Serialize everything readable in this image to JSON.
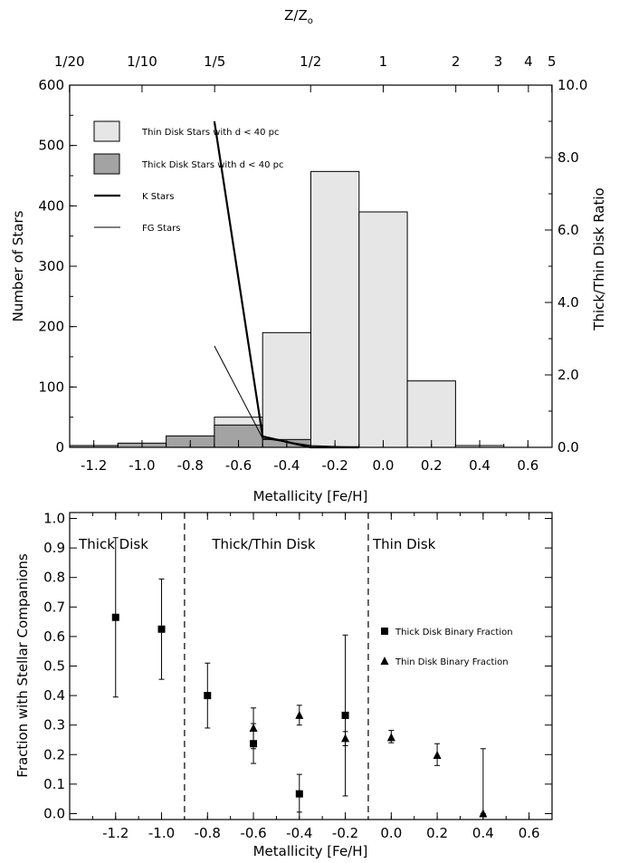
{
  "chart_data": [
    {
      "type": "bar",
      "top_axis": {
        "label_main": "Z/Z",
        "label_sub": "o",
        "ticks": [
          {
            "label": "1/20",
            "feh": -1.301
          },
          {
            "label": "1/10",
            "feh": -1.0
          },
          {
            "label": "1/5",
            "feh": -0.699
          },
          {
            "label": "1/2",
            "feh": -0.301
          },
          {
            "label": "1",
            "feh": 0.0
          },
          {
            "label": "2",
            "feh": 0.301
          },
          {
            "label": "3",
            "feh": 0.477
          },
          {
            "label": "4",
            "feh": 0.602
          },
          {
            "label": "5",
            "feh": 0.699
          }
        ]
      },
      "xlabel": "Metallicity [Fe/H]",
      "ylabel": "Number of Stars",
      "y2label": "Thick/Thin Disk Ratio",
      "xlim": [
        -1.3,
        0.7
      ],
      "ylim": [
        0,
        600
      ],
      "y2lim": [
        0,
        10
      ],
      "xticks": [
        "-1.2",
        "-1.0",
        "-0.8",
        "-0.6",
        "-0.4",
        "-0.2",
        "0.0",
        "0.2",
        "0.4",
        "0.6"
      ],
      "yticks": [
        "0",
        "100",
        "200",
        "300",
        "400",
        "500",
        "600"
      ],
      "y2ticks": [
        "0.0",
        "2.0",
        "4.0",
        "6.0",
        "8.0",
        "10.0"
      ],
      "legend": [
        {
          "label": "Thin Disk Stars with d < 40 pc",
          "kind": "box",
          "color": "#e6e6e6"
        },
        {
          "label": "Thick Disk Stars with d < 40 pc",
          "kind": "box",
          "color": "#a3a3a3"
        },
        {
          "label": "K Stars",
          "kind": "thick-line"
        },
        {
          "label": "FG Stars",
          "kind": "thin-line"
        }
      ],
      "series": [
        {
          "name": "Thin Disk Stars with d < 40 pc",
          "color": "#e6e6e6",
          "bins": [
            {
              "x0": -1.3,
              "x1": -1.1,
              "value": 0
            },
            {
              "x0": -1.1,
              "x1": -0.9,
              "value": 0
            },
            {
              "x0": -0.9,
              "x1": -0.7,
              "value": 0
            },
            {
              "x0": -0.7,
              "x1": -0.5,
              "value": 50
            },
            {
              "x0": -0.5,
              "x1": -0.3,
              "value": 190
            },
            {
              "x0": -0.3,
              "x1": -0.1,
              "value": 457
            },
            {
              "x0": -0.1,
              "x1": 0.1,
              "value": 390
            },
            {
              "x0": 0.1,
              "x1": 0.3,
              "value": 110
            },
            {
              "x0": 0.3,
              "x1": 0.5,
              "value": 3
            }
          ]
        },
        {
          "name": "Thick Disk Stars with d < 40 pc",
          "color": "#a3a3a3",
          "bins": [
            {
              "x0": -1.3,
              "x1": -1.1,
              "value": 3
            },
            {
              "x0": -1.1,
              "x1": -0.9,
              "value": 7
            },
            {
              "x0": -0.9,
              "x1": -0.7,
              "value": 19
            },
            {
              "x0": -0.7,
              "x1": -0.5,
              "value": 37
            },
            {
              "x0": -0.5,
              "x1": -0.3,
              "value": 13
            },
            {
              "x0": -0.3,
              "x1": -0.1,
              "value": 1
            }
          ]
        },
        {
          "name": "K Stars",
          "axis": "right",
          "points": [
            [
              -0.7,
              9.0
            ],
            [
              -0.5,
              0.3
            ],
            [
              -0.3,
              0.0
            ],
            [
              -0.1,
              0.0
            ]
          ]
        },
        {
          "name": "FG Stars",
          "axis": "right",
          "points": [
            [
              -0.7,
              2.8
            ],
            [
              -0.5,
              0.25
            ],
            [
              -0.3,
              0.05
            ],
            [
              -0.1,
              0.0
            ]
          ]
        }
      ]
    },
    {
      "type": "scatter",
      "xlabel": "Metallicity [Fe/H]",
      "ylabel": "Fraction with Stellar Companions",
      "xlim": [
        -1.4,
        0.7
      ],
      "ylim": [
        -0.02,
        1.02
      ],
      "xticks": [
        "-1.2",
        "-1.0",
        "-0.8",
        "-0.6",
        "-0.4",
        "-0.2",
        "0.0",
        "0.2",
        "0.4",
        "0.6"
      ],
      "yticks": [
        "0.0",
        "0.1",
        "0.2",
        "0.3",
        "0.4",
        "0.5",
        "0.6",
        "0.7",
        "0.8",
        "0.9",
        "1.0"
      ],
      "region_labels": [
        {
          "text": "Thick Disk",
          "feh": -1.36
        },
        {
          "text": "Thick/Thin Disk",
          "feh": -0.78
        },
        {
          "text": "Thin Disk",
          "feh": -0.08
        }
      ],
      "dividers": [
        -0.9,
        -0.1
      ],
      "legend": [
        {
          "label": "Thick Disk Binary Fraction",
          "marker": "square"
        },
        {
          "label": "Thin Disk Binary Fraction",
          "marker": "triangle"
        }
      ],
      "series": [
        {
          "name": "Thick Disk Binary Fraction",
          "marker": "square",
          "points": [
            {
              "x": -1.2,
              "y": 0.665,
              "lo": 0.395,
              "hi": 0.935
            },
            {
              "x": -1.0,
              "y": 0.625,
              "lo": 0.455,
              "hi": 0.795
            },
            {
              "x": -0.8,
              "y": 0.4,
              "lo": 0.29,
              "hi": 0.51
            },
            {
              "x": -0.6,
              "y": 0.237,
              "lo": 0.17,
              "hi": 0.305
            },
            {
              "x": -0.4,
              "y": 0.067,
              "lo": 0.005,
              "hi": 0.133
            },
            {
              "x": -0.2,
              "y": 0.333,
              "lo": 0.06,
              "hi": 0.605
            }
          ]
        },
        {
          "name": "Thin Disk Binary Fraction",
          "marker": "triangle",
          "points": [
            {
              "x": -0.6,
              "y": 0.29,
              "lo": 0.22,
              "hi": 0.358
            },
            {
              "x": -0.4,
              "y": 0.333,
              "lo": 0.3,
              "hi": 0.367
            },
            {
              "x": -0.2,
              "y": 0.255,
              "lo": 0.23,
              "hi": 0.278
            },
            {
              "x": 0.0,
              "y": 0.258,
              "lo": 0.24,
              "hi": 0.282
            },
            {
              "x": 0.2,
              "y": 0.198,
              "lo": 0.163,
              "hi": 0.237
            },
            {
              "x": 0.4,
              "y": 0.0,
              "lo": 0.0,
              "hi": 0.22
            }
          ]
        }
      ]
    }
  ]
}
